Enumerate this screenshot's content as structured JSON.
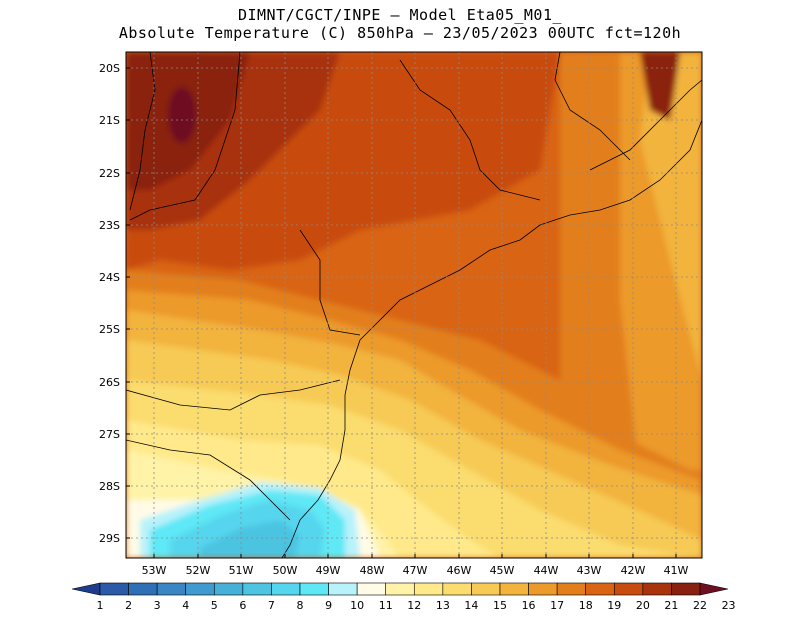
{
  "header": {
    "line1": "DIMNT/CGCT/INPE –  Model Eta05_M01_",
    "line2": "Absolute Temperature (C) 850hPa –  23/05/2023 00UTC fct=120h"
  },
  "map": {
    "lat_labels": [
      "20S",
      "21S",
      "22S",
      "23S",
      "24S",
      "25S",
      "26S",
      "27S",
      "28S",
      "29S"
    ],
    "lon_labels": [
      "53W",
      "52W",
      "51W",
      "50W",
      "49W",
      "48W",
      "47W",
      "46W",
      "45W",
      "44W",
      "43W",
      "42W",
      "41W"
    ]
  },
  "colorbar": {
    "labels": [
      "1",
      "2",
      "3",
      "4",
      "5",
      "6",
      "7",
      "8",
      "9",
      "10",
      "11",
      "12",
      "13",
      "14",
      "15",
      "16",
      "17",
      "18",
      "19",
      "20",
      "21",
      "22",
      "23"
    ],
    "colors": [
      "#1e3c8c",
      "#2a5aa8",
      "#2f6fb5",
      "#3a86c4",
      "#3f9bcf",
      "#46b0d8",
      "#4cc4e2",
      "#56d6ee",
      "#5ee8f6",
      "#b8f2fb",
      "#fffbe6",
      "#fff3a8",
      "#ffe98a",
      "#fbdc6e",
      "#f6ca55",
      "#f2b43c",
      "#ec9a2a",
      "#e27f1c",
      "#d96414",
      "#c84c0e",
      "#a8330c",
      "#8a2010",
      "#6e1022"
    ]
  }
}
